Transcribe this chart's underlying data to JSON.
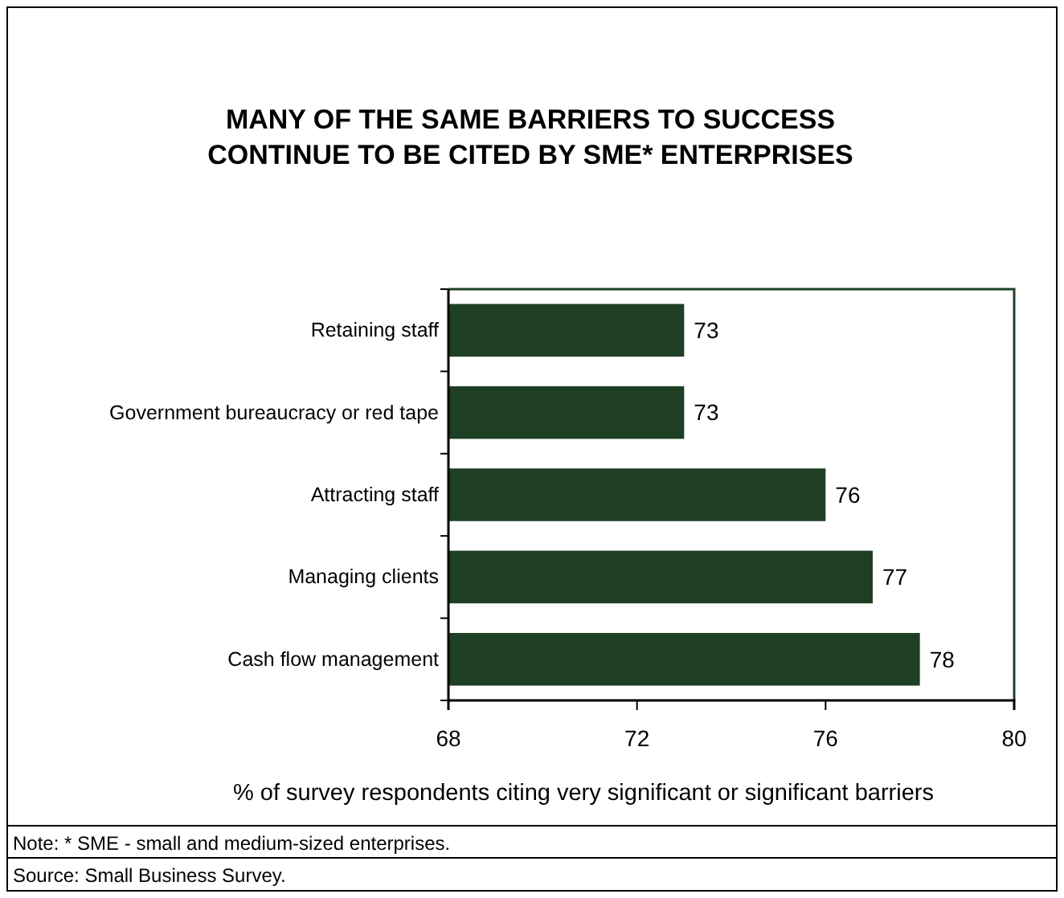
{
  "chart_data": {
    "type": "bar",
    "orientation": "horizontal",
    "title": "MANY OF THE SAME BARRIERS TO SUCCESS CONTINUE TO BE CITED BY SME* ENTERPRISES",
    "categories": [
      "Retaining staff",
      "Government bureaucracy or red tape",
      "Attracting staff",
      "Managing clients",
      "Cash flow management"
    ],
    "values": [
      73,
      73,
      76,
      77,
      78
    ],
    "color": "#1e3f24",
    "data_labels": true,
    "xlim": [
      68,
      80
    ],
    "xticks": [
      68,
      72,
      76,
      80
    ],
    "grid": false,
    "xlabel": "% of survey respondents citing very significant or significant barriers",
    "annotations": [
      "Note: * SME - small and medium-sized enterprises.",
      "Source: Small Business Survey."
    ]
  }
}
